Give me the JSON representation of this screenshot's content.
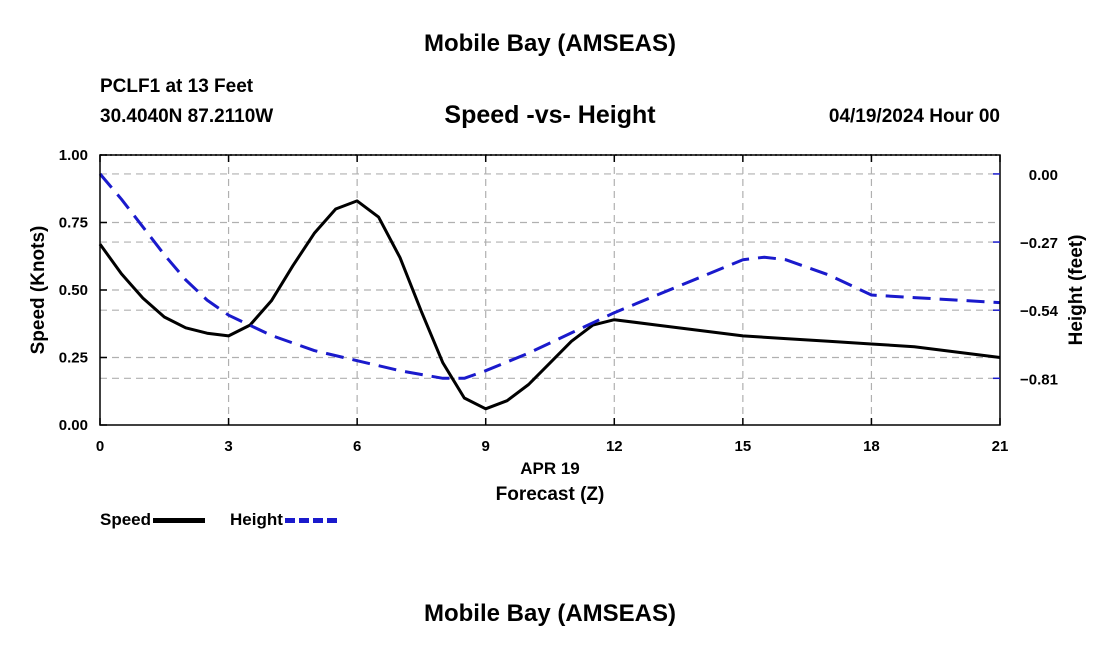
{
  "header": {
    "title": "Mobile Bay (AMSEAS)",
    "station": "PCLF1 at 13 Feet",
    "coords": "30.4040N  87.2110W",
    "subtitle": "Speed -vs- Height",
    "date": "04/19/2024 Hour 00"
  },
  "footer": {
    "title": "Mobile Bay (AMSEAS)"
  },
  "legend": {
    "speed_label": "Speed",
    "height_label": "Height"
  },
  "colors": {
    "speed": "#000000",
    "height": "#1a1acc",
    "grid": "#b0b0b0"
  },
  "chart_data": {
    "type": "line",
    "title": "Speed -vs- Height",
    "xlabel": "Forecast (Z)",
    "xlabel_date": "APR 19",
    "ylabel": "Speed (Knots)",
    "y2label": "Height (feet)",
    "xlim": [
      0,
      21
    ],
    "ylim": [
      0,
      1
    ],
    "y2lim": [
      -0.995,
      0.075
    ],
    "x_ticks": [
      "0",
      "3",
      "6",
      "9",
      "12",
      "15",
      "18",
      "21"
    ],
    "y_ticks": [
      "0.00",
      "0.25",
      "0.50",
      "0.75",
      "1.00"
    ],
    "y2_ticks": [
      "0.00",
      "−0.27",
      "−0.54",
      "−0.81"
    ],
    "grid": true,
    "series": [
      {
        "name": "Speed",
        "axis": "left",
        "style": "solid",
        "x": [
          0,
          0.5,
          1,
          1.5,
          2,
          2.5,
          3,
          3.5,
          4,
          4.5,
          5,
          5.5,
          6,
          6.5,
          7,
          7.5,
          8,
          8.5,
          9,
          9.5,
          10,
          10.5,
          11,
          11.5,
          12,
          13,
          14,
          15,
          16,
          17,
          18,
          19,
          20,
          21
        ],
        "values": [
          0.67,
          0.56,
          0.47,
          0.4,
          0.36,
          0.34,
          0.33,
          0.37,
          0.46,
          0.59,
          0.71,
          0.8,
          0.83,
          0.77,
          0.62,
          0.42,
          0.23,
          0.1,
          0.06,
          0.09,
          0.15,
          0.23,
          0.31,
          0.37,
          0.39,
          0.37,
          0.35,
          0.33,
          0.32,
          0.31,
          0.3,
          0.29,
          0.27,
          0.25
        ]
      },
      {
        "name": "Height",
        "axis": "right",
        "style": "dashed",
        "x": [
          0,
          0.5,
          1,
          1.5,
          2,
          2.5,
          3,
          4,
          5,
          6,
          7,
          8,
          8.5,
          9,
          10,
          11,
          12,
          13,
          14,
          15,
          15.5,
          16,
          17,
          18,
          19,
          20,
          21
        ],
        "values": [
          0.0,
          -0.1,
          -0.21,
          -0.32,
          -0.42,
          -0.5,
          -0.56,
          -0.64,
          -0.7,
          -0.74,
          -0.78,
          -0.81,
          -0.81,
          -0.78,
          -0.71,
          -0.63,
          -0.55,
          -0.48,
          -0.41,
          -0.34,
          -0.33,
          -0.34,
          -0.4,
          -0.48,
          -0.49,
          -0.5,
          -0.51
        ]
      }
    ]
  }
}
